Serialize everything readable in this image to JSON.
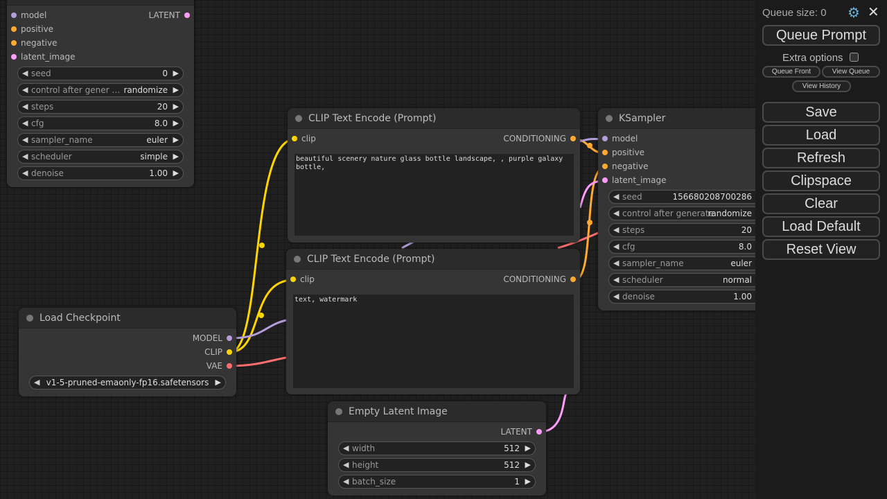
{
  "nodes": [
    {
      "id": "ksampler-top",
      "title": "",
      "inputs": [
        {
          "label": "model",
          "color": "#b39ddb"
        },
        {
          "label": "positive",
          "color": "#ffa931"
        },
        {
          "label": "negative",
          "color": "#ffa931"
        },
        {
          "label": "latent_image",
          "color": "#ff9cf9"
        }
      ],
      "outputs": [
        {
          "label": "LATENT",
          "color": "#ff9cf9"
        }
      ],
      "widgets": [
        {
          "name": "seed",
          "value": "0"
        },
        {
          "name": "control after gener …",
          "value": "randomize"
        },
        {
          "name": "steps",
          "value": "20"
        },
        {
          "name": "cfg",
          "value": "8.0"
        },
        {
          "name": "sampler_name",
          "value": "euler"
        },
        {
          "name": "scheduler",
          "value": "simple"
        },
        {
          "name": "denoise",
          "value": "1.00"
        }
      ]
    },
    {
      "id": "clip-text-encode-positive",
      "title": "CLIP Text Encode (Prompt)",
      "inputs": [
        {
          "label": "clip",
          "color": "#ffd500"
        }
      ],
      "outputs": [
        {
          "label": "CONDITIONING",
          "color": "#ffa931"
        }
      ],
      "widgets": [],
      "text": "beautiful scenery nature glass bottle landscape, , purple galaxy bottle,"
    },
    {
      "id": "clip-text-encode-negative",
      "title": "CLIP Text Encode (Prompt)",
      "inputs": [
        {
          "label": "clip",
          "color": "#ffd500"
        }
      ],
      "outputs": [
        {
          "label": "CONDITIONING",
          "color": "#ffa931"
        }
      ],
      "widgets": [],
      "text": "text, watermark"
    },
    {
      "id": "ksampler",
      "title": "KSampler",
      "inputs": [
        {
          "label": "model",
          "color": "#b39ddb"
        },
        {
          "label": "positive",
          "color": "#ffa931"
        },
        {
          "label": "negative",
          "color": "#ffa931"
        },
        {
          "label": "latent_image",
          "color": "#ff9cf9"
        }
      ],
      "outputs": [],
      "widgets": [
        {
          "name": "seed",
          "value": "156680208700286"
        },
        {
          "name": "control after generate",
          "value": "randomize"
        },
        {
          "name": "steps",
          "value": "20"
        },
        {
          "name": "cfg",
          "value": "8.0"
        },
        {
          "name": "sampler_name",
          "value": "euler"
        },
        {
          "name": "scheduler",
          "value": "normal"
        },
        {
          "name": "denoise",
          "value": "1.00"
        }
      ]
    },
    {
      "id": "load-checkpoint",
      "title": "Load Checkpoint",
      "inputs": [],
      "outputs": [
        {
          "label": "MODEL",
          "color": "#b39ddb"
        },
        {
          "label": "CLIP",
          "color": "#ffd500"
        },
        {
          "label": "VAE",
          "color": "#ff6e6e"
        }
      ],
      "widgets": [
        {
          "name": "",
          "value": "v1-5-pruned-emaonly-fp16.safetensors"
        }
      ]
    },
    {
      "id": "empty-latent-image",
      "title": "Empty Latent Image",
      "inputs": [],
      "outputs": [
        {
          "label": "LATENT",
          "color": "#ff9cf9"
        }
      ],
      "widgets": [
        {
          "name": "width",
          "value": "512"
        },
        {
          "name": "height",
          "value": "512"
        },
        {
          "name": "batch_size",
          "value": "1"
        }
      ]
    }
  ],
  "panel": {
    "queue_size": "Queue size: 0",
    "settings_icon": "gear-icon",
    "close_icon": "close-icon",
    "queue_prompt": "Queue Prompt",
    "extra_options": "Extra options",
    "queue_front": "Queue Front",
    "view_queue": "View Queue",
    "view_history": "View History",
    "buttons": [
      "Save",
      "Load",
      "Refresh",
      "Clipspace",
      "Clear",
      "Load Default",
      "Reset View"
    ]
  }
}
